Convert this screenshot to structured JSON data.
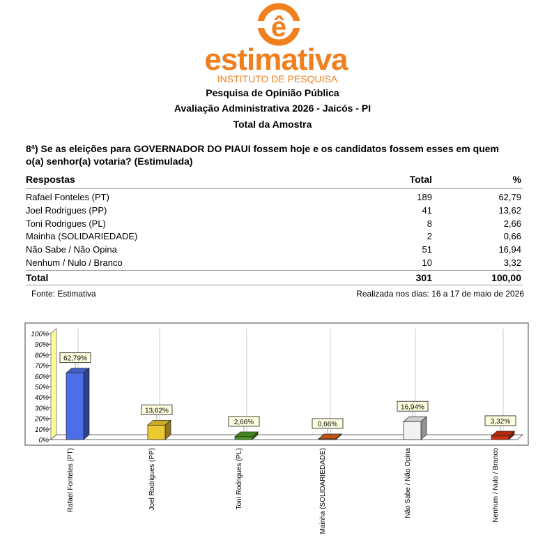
{
  "header": {
    "logo": "estimativa",
    "logo_subtitle": "INSTITUTO DE PESQUISA",
    "lines": [
      "Pesquisa de Opinião Pública",
      "Avaliação Administrativa 2026 - Jaicós - PI",
      "Total da Amostra"
    ]
  },
  "question": "8ª) Se as eleições para GOVERNADOR DO PIAUI fossem hoje e os candidatos fossem esses em quem o(a) senhor(a) votaria? (Estimulada)",
  "table": {
    "columns": [
      "Respostas",
      "Total",
      "%"
    ],
    "rows": [
      [
        "Rafael Fonteles (PT)",
        "189",
        "62,79"
      ],
      [
        "Joel Rodrigues (PP)",
        "41",
        "13,62"
      ],
      [
        "Toni Rodrigues (PL)",
        "8",
        "2,66"
      ],
      [
        "Mainha (SOLIDARIEDADE)",
        "2",
        "0,66"
      ],
      [
        "Não Sabe / Não Opina",
        "51",
        "16,94"
      ],
      [
        "Nenhum / Nulo / Branco",
        "10",
        "3,32"
      ]
    ],
    "total": [
      "Total",
      "301",
      "100,00"
    ]
  },
  "footer": {
    "source": "Fonte: Estimativa",
    "dates": "Realizada nos dias: 16 a 17 de maio de 2026"
  },
  "chart_data": {
    "type": "bar",
    "categories": [
      "Rafael Fonteles (PT)",
      "Joel Rodrigues (PP)",
      "Toni Rodrigues (PL)",
      "Mainha (SOLIDARIEDADE)",
      "Não Sabe / Não Opina",
      "Nenhum / Nulo / Branco"
    ],
    "values": [
      62.79,
      13.62,
      2.66,
      0.66,
      16.94,
      3.32
    ],
    "value_labels": [
      "62,79%",
      "13,62%",
      "2,66%",
      "0,66%",
      "16,94%",
      "3,32%"
    ],
    "colors": [
      "#4d6ee8",
      "#ecc930",
      "#4f9b22",
      "#e0661a",
      "#f2f2f2",
      "#d0300f"
    ],
    "ylim": [
      0,
      100
    ],
    "yticks": [
      {
        "value": 0,
        "label": "0%"
      },
      {
        "value": 10,
        "label": "10%"
      },
      {
        "value": 20,
        "label": "20%"
      },
      {
        "value": 30,
        "label": "30%"
      },
      {
        "value": 40,
        "label": "40%"
      },
      {
        "value": 50,
        "label": "50%"
      },
      {
        "value": 60,
        "label": "60%"
      },
      {
        "value": 70,
        "label": "70%"
      },
      {
        "value": 80,
        "label": "80%"
      },
      {
        "value": 90,
        "label": "90%"
      },
      {
        "value": 100,
        "label": "100%"
      }
    ]
  }
}
